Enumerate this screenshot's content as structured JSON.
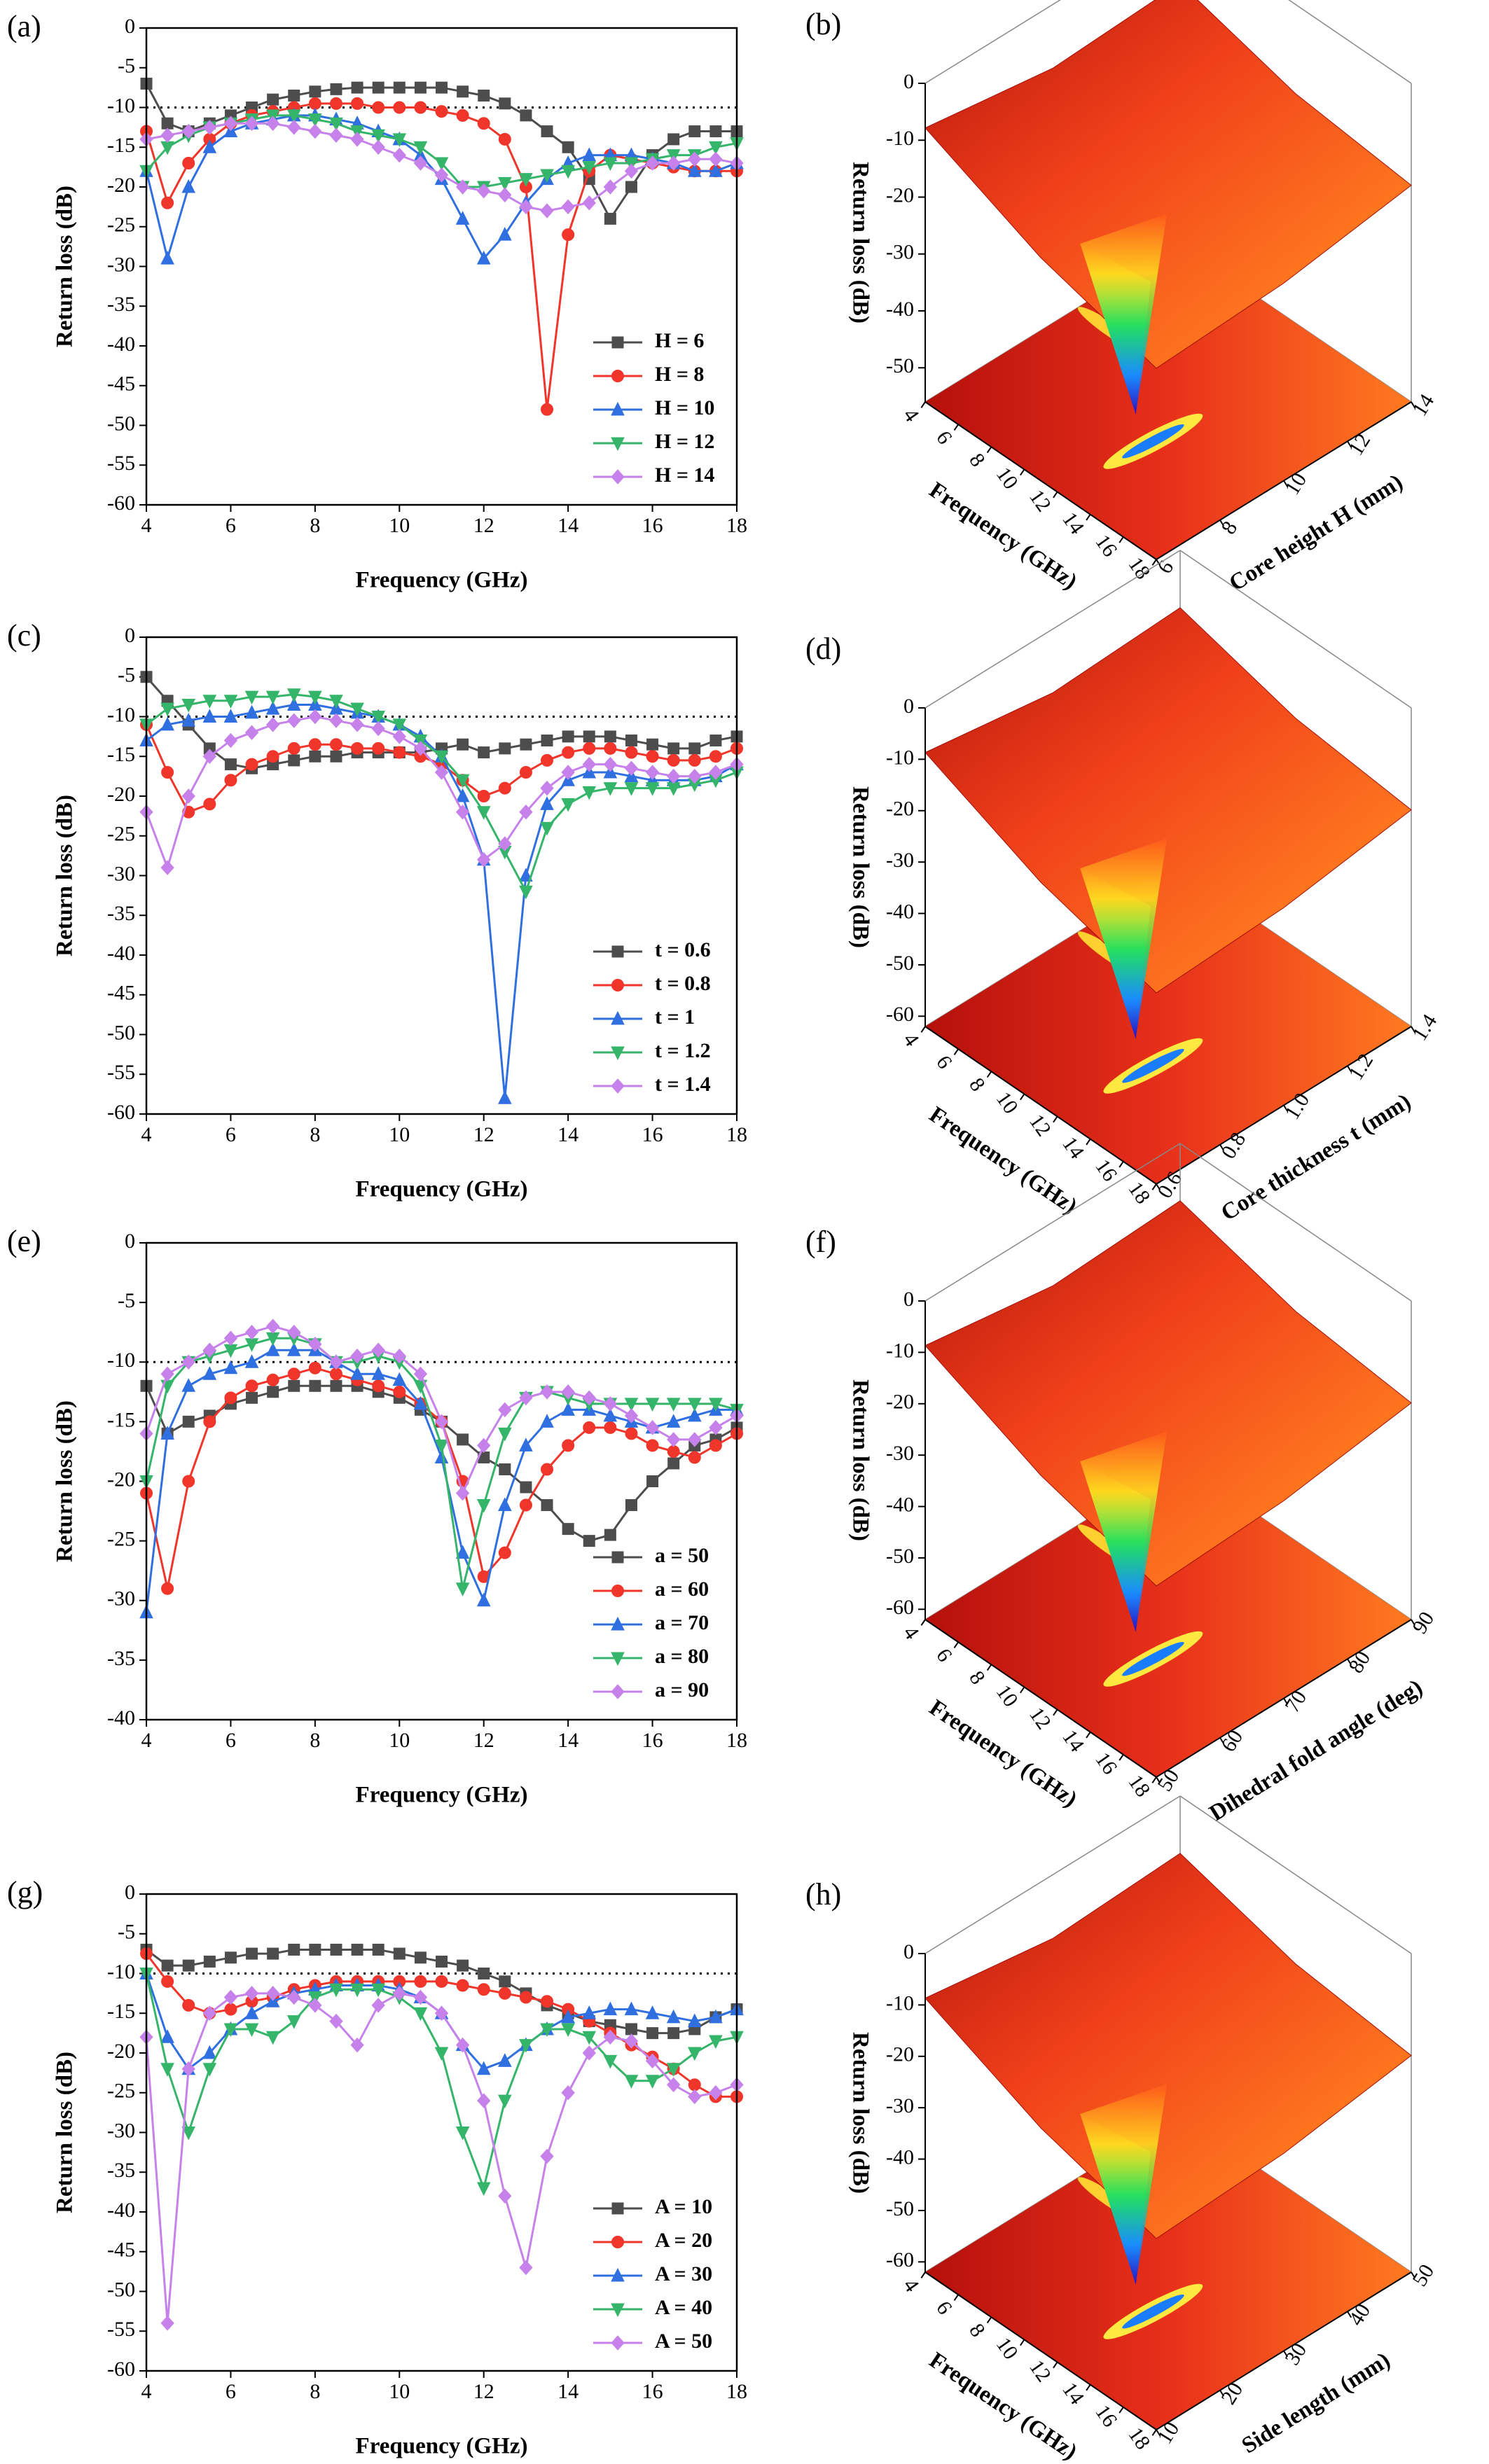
{
  "chart_data": [
    {
      "type": "line",
      "panel_label": "(a)",
      "xlabel": "Frequency (GHz)",
      "ylabel": "Return loss (dB)",
      "xlim": [
        4,
        18
      ],
      "xticks": [
        4,
        6,
        8,
        10,
        12,
        14,
        16,
        18
      ],
      "ylim": [
        -60,
        0
      ],
      "yticks": [
        0,
        -5,
        -10,
        -15,
        -20,
        -25,
        -30,
        -35,
        -40,
        -45,
        -50,
        -55,
        -60
      ],
      "hline": -10,
      "legend": "lower right",
      "x": [
        4,
        4.5,
        5,
        5.5,
        6,
        6.5,
        7,
        7.5,
        8,
        8.5,
        9,
        9.5,
        10,
        10.5,
        11,
        11.5,
        12,
        12.5,
        13,
        13.5,
        14,
        14.5,
        15,
        15.5,
        16,
        16.5,
        17,
        17.5,
        18
      ],
      "series": [
        {
          "name": "H = 6",
          "color": "#4d4d4d",
          "marker": "square",
          "values": [
            -7,
            -12,
            -13,
            -12,
            -11,
            -10,
            -9,
            -8.5,
            -8,
            -7.7,
            -7.5,
            -7.5,
            -7.5,
            -7.5,
            -7.5,
            -8,
            -8.5,
            -9.5,
            -11,
            -13,
            -15,
            -19,
            -24,
            -20,
            -16,
            -14,
            -13,
            -13,
            -13
          ]
        },
        {
          "name": "H = 8",
          "color": "#f0352a",
          "marker": "circle",
          "values": [
            -13,
            -22,
            -17,
            -14,
            -12,
            -11,
            -10.5,
            -10,
            -9.5,
            -9.5,
            -9.5,
            -10,
            -10,
            -10,
            -10.5,
            -11,
            -12,
            -14,
            -20,
            -48,
            -26,
            -18,
            -16,
            -16.5,
            -17,
            -17.5,
            -18,
            -18,
            -18
          ]
        },
        {
          "name": "H = 10",
          "color": "#2f6fe0",
          "marker": "triangle-up",
          "values": [
            -18,
            -29,
            -20,
            -15,
            -13,
            -12,
            -11.5,
            -11,
            -11,
            -11.5,
            -12,
            -13,
            -14,
            -16,
            -19,
            -24,
            -29,
            -26,
            -22,
            -19,
            -17,
            -16,
            -16,
            -16,
            -16.5,
            -17,
            -18,
            -18,
            -17
          ]
        },
        {
          "name": "H = 12",
          "color": "#35b56a",
          "marker": "triangle-down",
          "values": [
            -18,
            -15,
            -13.5,
            -12.5,
            -12,
            -11.5,
            -11,
            -11,
            -11.5,
            -12,
            -13,
            -13.5,
            -14,
            -15,
            -17,
            -20,
            -20,
            -19.5,
            -19,
            -18.5,
            -18,
            -17.5,
            -17,
            -17,
            -16.5,
            -16,
            -16,
            -15,
            -14.5
          ]
        },
        {
          "name": "H = 14",
          "color": "#c682ea",
          "marker": "diamond",
          "values": [
            -14,
            -13.5,
            -13,
            -12.5,
            -12,
            -12,
            -12,
            -12.5,
            -13,
            -13.5,
            -14,
            -15,
            -16,
            -17,
            -18.5,
            -20,
            -20.5,
            -21,
            -22.5,
            -23,
            -22.5,
            -22,
            -20,
            -18,
            -17,
            -17,
            -16.5,
            -16.5,
            -17
          ]
        }
      ]
    },
    {
      "type": "surface3d",
      "panel_label": "(b)",
      "xlabel": "Frequency (GHz)",
      "ylabel": "Core height H (mm)",
      "zlabel": "Return loss (dB)",
      "xlim": [
        4,
        18
      ],
      "xticks": [
        4,
        6,
        8,
        10,
        12,
        14,
        16,
        18
      ],
      "ylim": [
        6,
        14
      ],
      "yticks": [
        6,
        8,
        10,
        12,
        14
      ],
      "zlim": [
        -56,
        0
      ],
      "zticks": [
        0,
        -10,
        -20,
        -30,
        -40,
        -50
      ]
    },
    {
      "type": "line",
      "panel_label": "(c)",
      "xlabel": "Frequency (GHz)",
      "ylabel": "Return loss (dB)",
      "xlim": [
        4,
        18
      ],
      "xticks": [
        4,
        6,
        8,
        10,
        12,
        14,
        16,
        18
      ],
      "ylim": [
        -60,
        0
      ],
      "yticks": [
        0,
        -5,
        -10,
        -15,
        -20,
        -25,
        -30,
        -35,
        -40,
        -45,
        -50,
        -55,
        -60
      ],
      "hline": -10,
      "legend": "lower right",
      "x": [
        4,
        4.5,
        5,
        5.5,
        6,
        6.5,
        7,
        7.5,
        8,
        8.5,
        9,
        9.5,
        10,
        10.5,
        11,
        11.5,
        12,
        12.5,
        13,
        13.5,
        14,
        14.5,
        15,
        15.5,
        16,
        16.5,
        17,
        17.5,
        18
      ],
      "series": [
        {
          "name": "t = 0.6",
          "color": "#4d4d4d",
          "marker": "square",
          "values": [
            -5,
            -8,
            -11,
            -14,
            -16,
            -16.5,
            -16,
            -15.5,
            -15,
            -15,
            -14.5,
            -14.5,
            -14.5,
            -14.5,
            -14,
            -13.5,
            -14.5,
            -14,
            -13.5,
            -13,
            -12.5,
            -12.5,
            -12.5,
            -13,
            -13.5,
            -14,
            -14,
            -13,
            -12.5
          ]
        },
        {
          "name": "t = 0.8",
          "color": "#f0352a",
          "marker": "circle",
          "values": [
            -11,
            -17,
            -22,
            -21,
            -18,
            -16,
            -15,
            -14,
            -13.5,
            -13.5,
            -14,
            -14,
            -14.5,
            -15,
            -16,
            -18,
            -20,
            -19,
            -17,
            -15.5,
            -14.5,
            -14,
            -14,
            -14.5,
            -15,
            -15.5,
            -15.5,
            -15,
            -14
          ]
        },
        {
          "name": "t = 1",
          "color": "#2f6fe0",
          "marker": "triangle-up",
          "values": [
            -13,
            -11,
            -10.5,
            -10,
            -10,
            -9.5,
            -9,
            -8.5,
            -8.5,
            -9,
            -9.5,
            -10,
            -11,
            -12.5,
            -15,
            -20,
            -28,
            -58,
            -30,
            -21,
            -18,
            -17,
            -17,
            -17.5,
            -18,
            -18,
            -18,
            -17.5,
            -16
          ]
        },
        {
          "name": "t = 1.2",
          "color": "#35b56a",
          "marker": "triangle-down",
          "values": [
            -11,
            -9,
            -8.5,
            -8,
            -8,
            -7.5,
            -7.5,
            -7.2,
            -7.5,
            -8,
            -9,
            -10,
            -11,
            -13,
            -15,
            -18,
            -22,
            -27,
            -32,
            -24,
            -21,
            -19.5,
            -19,
            -19,
            -19,
            -19,
            -18.5,
            -18,
            -17
          ]
        },
        {
          "name": "t = 1.4",
          "color": "#c682ea",
          "marker": "diamond",
          "values": [
            -22,
            -29,
            -20,
            -15,
            -13,
            -12,
            -11,
            -10.5,
            -10,
            -10.5,
            -11,
            -11.5,
            -12.5,
            -14,
            -17,
            -22,
            -28,
            -26,
            -22,
            -19,
            -17,
            -16,
            -16,
            -16.5,
            -17,
            -17.5,
            -17.5,
            -17,
            -16
          ]
        }
      ]
    },
    {
      "type": "surface3d",
      "panel_label": "(d)",
      "xlabel": "Frequency (GHz)",
      "ylabel": "Core thickness t (mm)",
      "zlabel": "Return loss (dB)",
      "xlim": [
        4,
        18
      ],
      "xticks": [
        4,
        6,
        8,
        10,
        12,
        14,
        16,
        18
      ],
      "ylim": [
        0.6,
        1.4
      ],
      "yticks": [
        0.6,
        0.8,
        {
          "value": 1,
          "label": "1.0"
        },
        1.2,
        1.4
      ],
      "zlim": [
        -62,
        0
      ],
      "zticks": [
        0,
        -10,
        -20,
        -30,
        -40,
        -50,
        -60
      ]
    },
    {
      "type": "line",
      "panel_label": "(e)",
      "xlabel": "Frequency (GHz)",
      "ylabel": "Return loss (dB)",
      "xlim": [
        4,
        18
      ],
      "xticks": [
        4,
        6,
        8,
        10,
        12,
        14,
        16,
        18
      ],
      "ylim": [
        -40,
        0
      ],
      "yticks": [
        0,
        -5,
        -10,
        -15,
        -20,
        -25,
        -30,
        -35,
        -40
      ],
      "hline": -10,
      "legend": "lower right",
      "x": [
        4,
        4.5,
        5,
        5.5,
        6,
        6.5,
        7,
        7.5,
        8,
        8.5,
        9,
        9.5,
        10,
        10.5,
        11,
        11.5,
        12,
        12.5,
        13,
        13.5,
        14,
        14.5,
        15,
        15.5,
        16,
        16.5,
        17,
        17.5,
        18
      ],
      "series": [
        {
          "name": "a = 50",
          "color": "#4d4d4d",
          "marker": "square",
          "values": [
            -12,
            -16,
            -15,
            -14.5,
            -13.5,
            -13,
            -12.5,
            -12,
            -12,
            -12,
            -12,
            -12.5,
            -13,
            -14,
            -15,
            -16.5,
            -18,
            -19,
            -20.5,
            -22,
            -24,
            -25,
            -24.5,
            -22,
            -20,
            -18.5,
            -17,
            -16.5,
            -15.5
          ]
        },
        {
          "name": "a = 60",
          "color": "#f0352a",
          "marker": "circle",
          "values": [
            -21,
            -29,
            -20,
            -15,
            -13,
            -12,
            -11.5,
            -11,
            -10.5,
            -11,
            -11.5,
            -12,
            -12.5,
            -13.5,
            -15,
            -20,
            -28,
            -26,
            -22,
            -19,
            -17,
            -15.5,
            -15.5,
            -16,
            -17,
            -17.5,
            -18,
            -17,
            -16
          ]
        },
        {
          "name": "a = 70",
          "color": "#2f6fe0",
          "marker": "triangle-up",
          "values": [
            -31,
            -16,
            -12,
            -11,
            -10.5,
            -10,
            -9,
            -9,
            -9,
            -10,
            -11,
            -11,
            -11.5,
            -13.5,
            -18,
            -26,
            -30,
            -22,
            -17,
            -15,
            -14,
            -14,
            -14.5,
            -15,
            -15.5,
            -15,
            -14.5,
            -14,
            -14
          ]
        },
        {
          "name": "a = 80",
          "color": "#35b56a",
          "marker": "triangle-down",
          "values": [
            -20,
            -12,
            -10,
            -9.5,
            -9,
            -8.5,
            -8,
            -8,
            -8.5,
            -10,
            -10,
            -9.5,
            -10,
            -12,
            -17,
            -29,
            -22,
            -16,
            -13,
            -12.5,
            -13,
            -13.5,
            -13.5,
            -13.5,
            -13.5,
            -13.5,
            -13.5,
            -13.5,
            -14
          ]
        },
        {
          "name": "a = 90",
          "color": "#c682ea",
          "marker": "diamond",
          "values": [
            -16,
            -11,
            -10,
            -9,
            -8,
            -7.5,
            -7,
            -7.5,
            -8.5,
            -10,
            -9.5,
            -9,
            -9.5,
            -11,
            -15,
            -21,
            -17,
            -14,
            -13,
            -12.5,
            -12.5,
            -13,
            -13.5,
            -14.5,
            -15.5,
            -16.5,
            -16.5,
            -15.5,
            -14.5
          ]
        }
      ]
    },
    {
      "type": "surface3d",
      "panel_label": "(f)",
      "xlabel": "Frequency (GHz)",
      "ylabel": "Dihedral fold angle (deg)",
      "zlabel": "Return loss (dB)",
      "xlim": [
        4,
        18
      ],
      "xticks": [
        4,
        6,
        8,
        10,
        12,
        14,
        16,
        18
      ],
      "ylim": [
        50,
        90
      ],
      "yticks": [
        50,
        60,
        70,
        80,
        90
      ],
      "zlim": [
        -62,
        0
      ],
      "zticks": [
        0,
        -10,
        -20,
        -30,
        -40,
        -50,
        -60
      ]
    },
    {
      "type": "line",
      "panel_label": "(g)",
      "xlabel": "Frequency (GHz)",
      "ylabel": "Return loss (dB)",
      "xlim": [
        4,
        18
      ],
      "xticks": [
        4,
        6,
        8,
        10,
        12,
        14,
        16,
        18
      ],
      "ylim": [
        -60,
        0
      ],
      "yticks": [
        0,
        -5,
        -10,
        -15,
        -20,
        -25,
        -30,
        -35,
        -40,
        -45,
        -50,
        -55,
        -60
      ],
      "hline": -10,
      "legend": "lower right",
      "x": [
        4,
        4.5,
        5,
        5.5,
        6,
        6.5,
        7,
        7.5,
        8,
        8.5,
        9,
        9.5,
        10,
        10.5,
        11,
        11.5,
        12,
        12.5,
        13,
        13.5,
        14,
        14.5,
        15,
        15.5,
        16,
        16.5,
        17,
        17.5,
        18
      ],
      "series": [
        {
          "name": "A = 10",
          "color": "#4d4d4d",
          "marker": "square",
          "values": [
            -7,
            -9,
            -9,
            -8.5,
            -8,
            -7.5,
            -7.5,
            -7,
            -7,
            -7,
            -7,
            -7,
            -7.5,
            -8,
            -8.5,
            -9,
            -10,
            -11,
            -12.5,
            -14,
            -15,
            -16,
            -16.5,
            -17,
            -17.5,
            -17.5,
            -17,
            -15.5,
            -14.5
          ]
        },
        {
          "name": "A = 20",
          "color": "#f0352a",
          "marker": "circle",
          "values": [
            -7.5,
            -11,
            -14,
            -15,
            -14.5,
            -13.5,
            -13,
            -12,
            -11.5,
            -11,
            -11,
            -11,
            -11,
            -11,
            -11,
            -11.5,
            -12,
            -12.5,
            -13,
            -13.5,
            -14.5,
            -16,
            -17.5,
            -19,
            -20.5,
            -22,
            -24,
            -25.5,
            -25.5
          ]
        },
        {
          "name": "A = 30",
          "color": "#2f6fe0",
          "marker": "triangle-up",
          "values": [
            -10,
            -18,
            -22,
            -20,
            -17,
            -15,
            -13.5,
            -12.5,
            -12,
            -11.5,
            -11.5,
            -11.5,
            -12,
            -13,
            -15,
            -19,
            -22,
            -21,
            -19,
            -17,
            -15.5,
            -15,
            -14.5,
            -14.5,
            -15,
            -15.5,
            -16,
            -15.5,
            -14.5
          ]
        },
        {
          "name": "A = 40",
          "color": "#35b56a",
          "marker": "triangle-down",
          "values": [
            -10,
            -22,
            -30,
            -22,
            -17,
            -17,
            -18,
            -16,
            -13,
            -12,
            -12,
            -12,
            -13,
            -15,
            -20,
            -30,
            -37,
            -26,
            -19,
            -17,
            -17,
            -18,
            -21,
            -23.5,
            -23.5,
            -22,
            -20,
            -18.5,
            -18
          ]
        },
        {
          "name": "A = 50",
          "color": "#c682ea",
          "marker": "diamond",
          "values": [
            -18,
            -54,
            -22,
            -15,
            -13,
            -12.5,
            -12.5,
            -13,
            -14,
            -16,
            -19,
            -14,
            -12.5,
            -13,
            -15,
            -19,
            -26,
            -38,
            -47,
            -33,
            -25,
            -20,
            -18,
            -18.5,
            -21,
            -24,
            -25.5,
            -25,
            -24
          ]
        }
      ]
    },
    {
      "type": "surface3d",
      "panel_label": "(h)",
      "xlabel": "Frequency (GHz)",
      "ylabel": "Side length (mm)",
      "zlabel": "Return loss (dB)",
      "xlim": [
        4,
        18
      ],
      "xticks": [
        4,
        6,
        8,
        10,
        12,
        14,
        16,
        18
      ],
      "ylim": [
        10,
        50
      ],
      "yticks": [
        10,
        20,
        30,
        40,
        50
      ],
      "zlim": [
        -62,
        0
      ],
      "zticks": [
        0,
        -10,
        -20,
        -30,
        -40,
        -50,
        -60
      ]
    }
  ]
}
